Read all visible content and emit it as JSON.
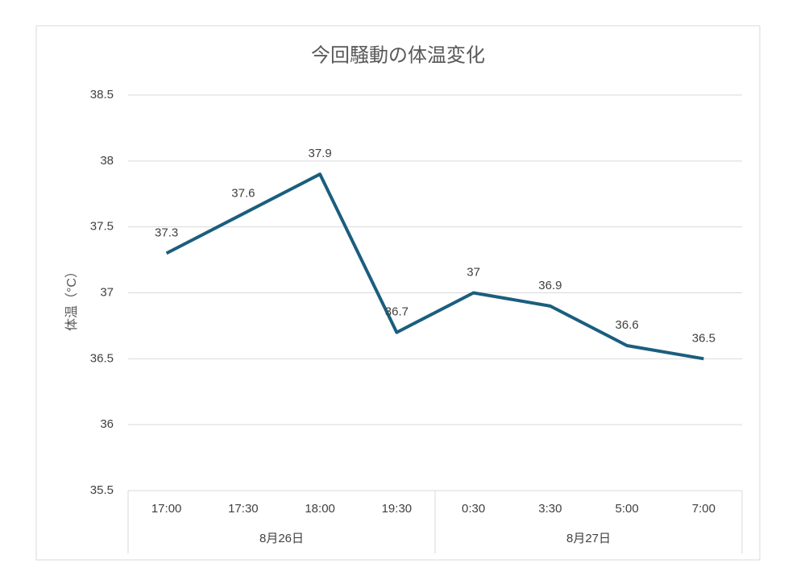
{
  "chart_data": {
    "type": "line",
    "title": "今回騒動の体温変化",
    "y_label": "体温（°C）",
    "groups": [
      {
        "label": "8月26日",
        "categories": [
          "17:00",
          "17:30",
          "18:00",
          "19:30"
        ]
      },
      {
        "label": "8月27日",
        "categories": [
          "0:30",
          "3:30",
          "5:00",
          "7:00"
        ]
      }
    ],
    "values": [
      37.3,
      37.6,
      37.9,
      36.7,
      37,
      36.9,
      36.6,
      36.5
    ],
    "color": "#1b5e7e",
    "ylim": [
      35.5,
      38.5
    ],
    "yticks": [
      35.5,
      36,
      36.5,
      37,
      37.5,
      38,
      38.5
    ],
    "grid": true
  }
}
